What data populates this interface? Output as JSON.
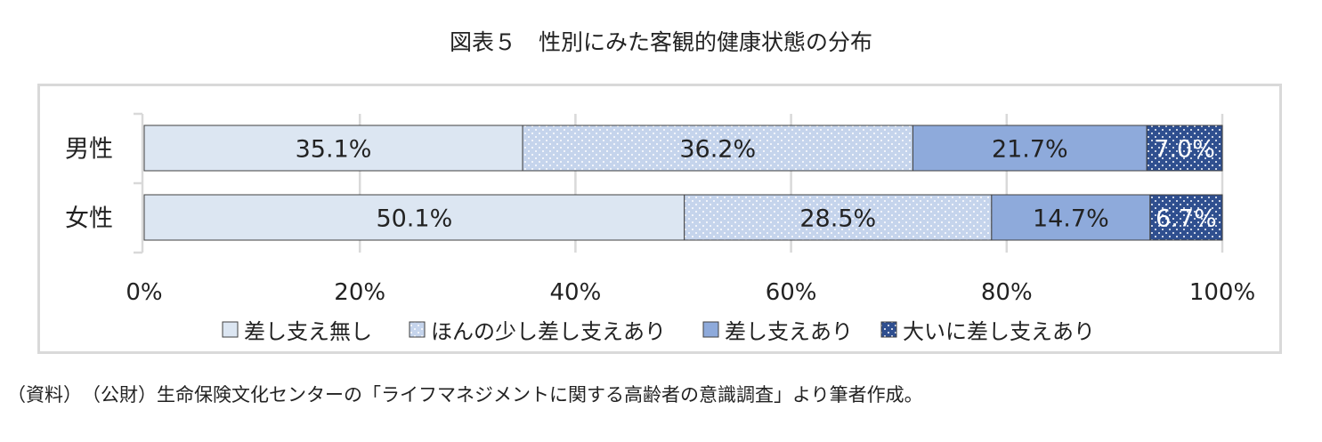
{
  "title": "図表５　性別にみた客観的健康状態の分布",
  "note": "（資料）　（公財）生命保険文化センターの「ライフマネジメントに関する高齢者の意識調査」より筆者作成。",
  "chart_data": {
    "type": "bar",
    "orientation": "horizontal",
    "stacked": true,
    "percent_stacked": true,
    "categories": [
      "男性",
      "女性"
    ],
    "series": [
      {
        "name": "差し支え無し",
        "values": [
          35.1,
          50.1
        ],
        "labels": [
          "35.1%",
          "50.1%"
        ],
        "color": "#dce6f2",
        "pattern": "none"
      },
      {
        "name": "ほんの少し差し支えあり",
        "values": [
          36.2,
          28.5
        ],
        "labels": [
          "36.2%",
          "28.5%"
        ],
        "color": "#c5d4ec",
        "pattern": "dots-white"
      },
      {
        "name": "差し支えあり",
        "values": [
          21.7,
          14.7
        ],
        "labels": [
          "21.7%",
          "14.7%"
        ],
        "color": "#8eaadb",
        "pattern": "none"
      },
      {
        "name": "大いに差し支えあり",
        "values": [
          7.0,
          6.7
        ],
        "labels": [
          "7.0%",
          "6.7%"
        ],
        "color": "#2f4f8f",
        "pattern": "dots-white"
      }
    ],
    "xlim": [
      0,
      100
    ],
    "xticks": [
      0,
      20,
      40,
      60,
      80,
      100
    ],
    "xtick_labels": [
      "0%",
      "20%",
      "40%",
      "60%",
      "80%",
      "100%"
    ],
    "grid": true,
    "legend_position": "bottom"
  }
}
